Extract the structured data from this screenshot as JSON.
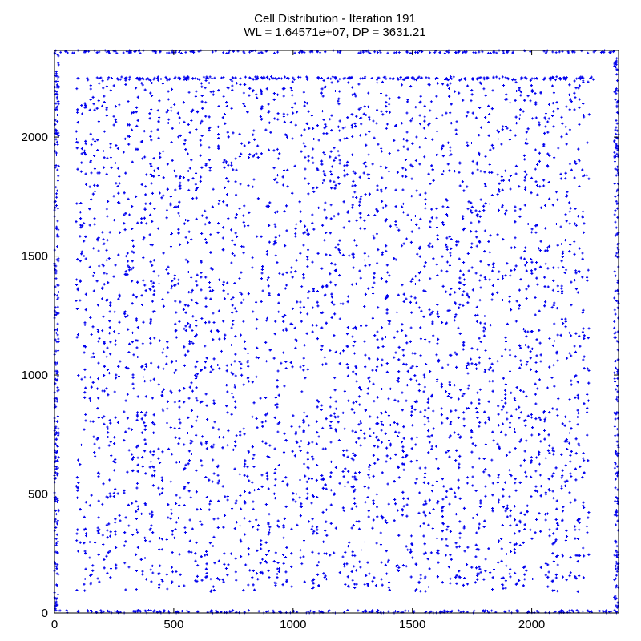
{
  "chart_data": {
    "type": "scatter",
    "title": "Cell Distribution - Iteration 191",
    "subtitle": "WL = 1.64571e+07, DP = 3631.21",
    "xlabel": "",
    "ylabel": "",
    "xlim": [
      0,
      2364
    ],
    "ylim": [
      0,
      2364
    ],
    "x_ticks": [
      "0",
      "500",
      "1000",
      "1500",
      "2000"
    ],
    "y_ticks": [
      "0",
      "500",
      "1000",
      "1500",
      "2000"
    ],
    "x_tick_values": [
      0,
      500,
      1000,
      1500,
      2000
    ],
    "y_tick_values": [
      0,
      500,
      1000,
      1500,
      2000
    ],
    "grid": false,
    "legend": "none",
    "marker": "+",
    "color": "#0000ee",
    "approx_point_count": 9000,
    "series": [
      {
        "values_note_free": true,
        "points": [
          [
            97,
            2247
          ],
          [
            140,
            2240
          ],
          [
            186,
            2246
          ],
          [
            240,
            2248
          ],
          [
            300,
            2247
          ],
          [
            355,
            2249
          ],
          [
            420,
            2249
          ],
          [
            470,
            2248
          ],
          [
            520,
            2249
          ],
          [
            580,
            2248
          ],
          [
            640,
            2248
          ],
          [
            700,
            2249
          ],
          [
            760,
            2249
          ],
          [
            820,
            2248
          ],
          [
            880,
            2249
          ],
          [
            940,
            2248
          ],
          [
            1000,
            2249
          ],
          [
            1060,
            2249
          ],
          [
            1120,
            2248
          ],
          [
            1180,
            2249
          ],
          [
            1240,
            2249
          ],
          [
            1300,
            2248
          ],
          [
            1360,
            2249
          ],
          [
            1420,
            2248
          ],
          [
            1480,
            2249
          ],
          [
            1540,
            2249
          ],
          [
            1600,
            2248
          ],
          [
            1660,
            2249
          ],
          [
            1720,
            2248
          ],
          [
            1780,
            2249
          ],
          [
            1840,
            2249
          ],
          [
            1900,
            2248
          ],
          [
            1960,
            2249
          ],
          [
            2020,
            2248
          ],
          [
            2080,
            2249
          ],
          [
            2140,
            2248
          ],
          [
            2200,
            2249
          ],
          [
            300,
            1500
          ],
          [
            520,
            1400
          ],
          [
            700,
            1100
          ],
          [
            950,
            1050
          ],
          [
            1200,
            1300
          ],
          [
            1400,
            900
          ],
          [
            1600,
            700
          ],
          [
            1800,
            1200
          ],
          [
            2000,
            1600
          ],
          [
            2200,
            1900
          ],
          [
            250,
            600
          ],
          [
            400,
            300
          ],
          [
            600,
            200
          ],
          [
            900,
            150
          ],
          [
            1300,
            120
          ],
          [
            1700,
            150
          ],
          [
            2100,
            300
          ]
        ]
      }
    ]
  }
}
